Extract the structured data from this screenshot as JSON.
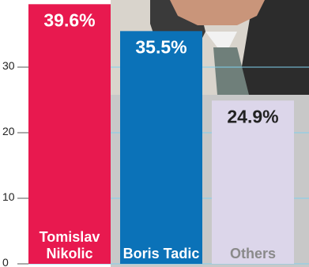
{
  "chart_data": {
    "type": "bar",
    "categories": [
      "Tomislav Nikolic",
      "Boris Tadic",
      "Others"
    ],
    "values": [
      39.6,
      35.5,
      24.9
    ],
    "value_labels": [
      "39.6%",
      "35.5%",
      "24.9%"
    ],
    "colors": [
      "#e8194f",
      "#0b72b8",
      "#dcd6ea"
    ],
    "ylim": [
      0,
      40
    ],
    "yticks": [
      0,
      10,
      20,
      30
    ],
    "grid": true
  }
}
